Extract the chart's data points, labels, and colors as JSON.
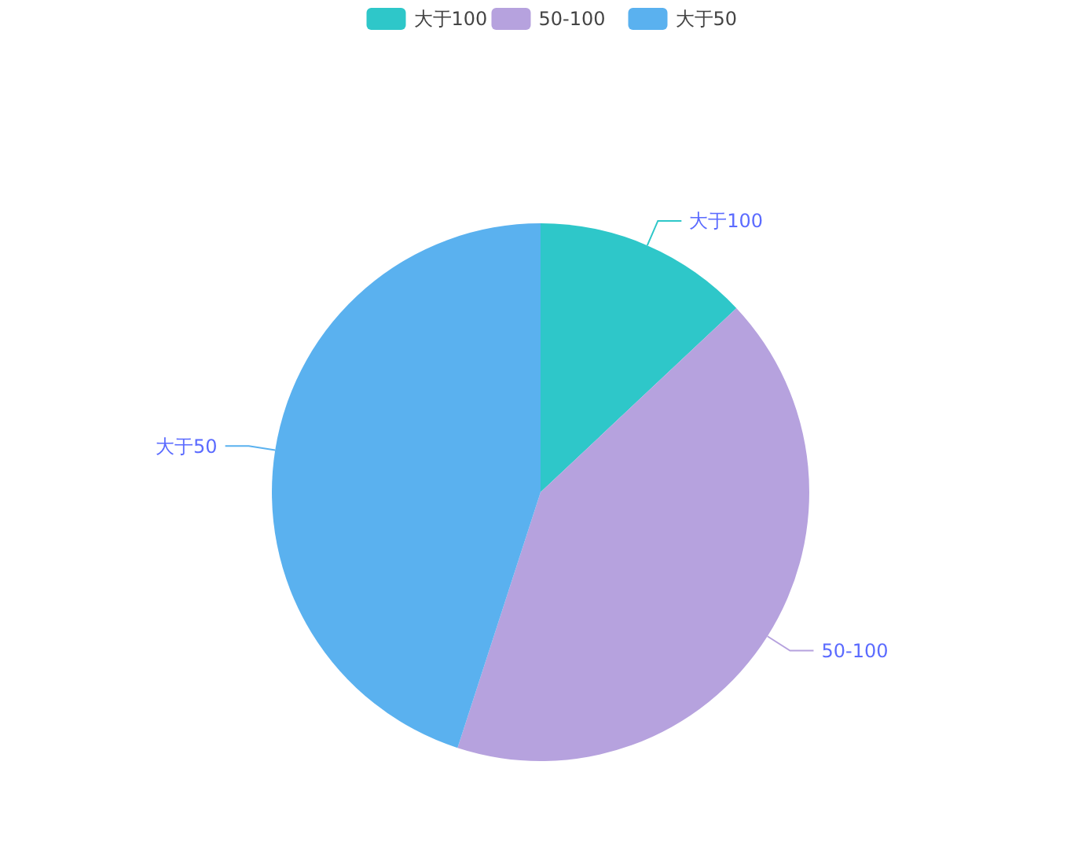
{
  "chart_data": {
    "type": "pie",
    "categories": [
      "大于100",
      "50-100",
      "大于50"
    ],
    "values": [
      13,
      42,
      45
    ],
    "colors": [
      "#2ec7c9",
      "#b6a2de",
      "#5ab1ef"
    ],
    "legend": "top"
  }
}
